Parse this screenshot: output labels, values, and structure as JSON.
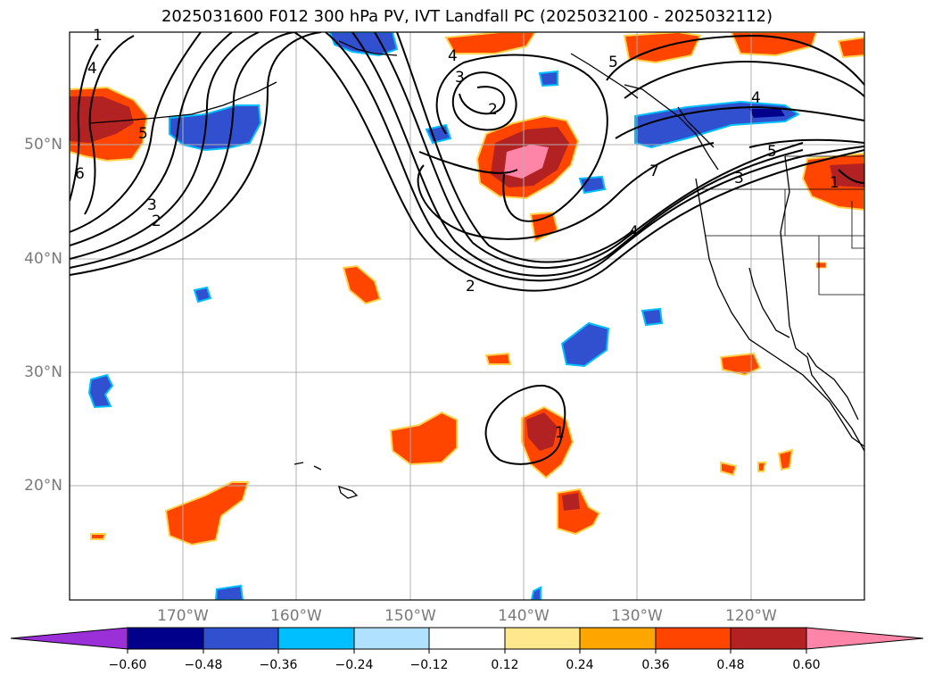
{
  "title": "2025031600 F012 300 hPa PV, IVT Landfall PC (2025032100 - 2025032112)",
  "lat_labels": [
    "50°N",
    "40°N",
    "30°N",
    "20°N"
  ],
  "lon_labels": [
    "170°W",
    "160°W",
    "150°W",
    "140°W",
    "130°W",
    "120°W"
  ],
  "colorbar": {
    "tick_labels": [
      "−0.60",
      "−0.48",
      "−0.36",
      "−0.24",
      "−0.12",
      "0.12",
      "0.24",
      "0.36",
      "0.48",
      "0.60"
    ],
    "colors": [
      "#9b30d9",
      "#00008b",
      "#3050d0",
      "#00bfff",
      "#b0e2ff",
      "#ffffff",
      "#ffe88c",
      "#ffa500",
      "#ff4500",
      "#b22222",
      "#ff85a8"
    ]
  },
  "contour_labels": [
    "1",
    "4",
    "5",
    "6",
    "3",
    "2",
    "4",
    "3",
    "2",
    "5",
    "4",
    "7",
    "5",
    "3",
    "1",
    "4",
    "2",
    "1"
  ]
}
